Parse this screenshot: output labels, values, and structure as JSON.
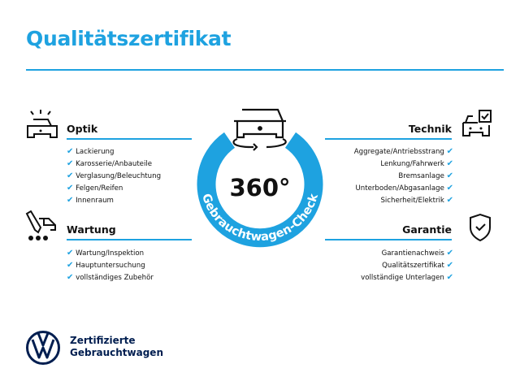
{
  "title": "Qualitätszertifikat",
  "colors": {
    "accent": "#1ea2e0",
    "brand": "#001e50"
  },
  "badge": {
    "value": "360°",
    "ring_text": "Gebrauchtwagen-Check",
    "icon": "car-rotate-icon"
  },
  "sections": {
    "optik": {
      "heading": "Optik",
      "icon": "car-lights-icon",
      "items": [
        "Lackierung",
        "Karosserie/Anbauteile",
        "Verglasung/Beleuchtung",
        "Felgen/Reifen",
        "Innenraum"
      ]
    },
    "wartung": {
      "heading": "Wartung",
      "icon": "service-tools-icon",
      "items": [
        "Wartung/Inspektion",
        "Hauptuntersuchung",
        "vollständiges Zubehör"
      ]
    },
    "technik": {
      "heading": "Technik",
      "icon": "car-checkbox-icon",
      "items": [
        "Aggregate/Antriebsstrang",
        "Lenkung/Fahrwerk",
        "Bremsanlage",
        "Unterboden/Abgasanlage",
        "Sicherheit/Elektrik"
      ]
    },
    "garantie": {
      "heading": "Garantie",
      "icon": "shield-check-icon",
      "items": [
        "Garantienachweis",
        "Qualitätszertifikat",
        "vollständige Unterlagen"
      ]
    }
  },
  "footer": {
    "line1": "Zertifizierte",
    "line2": "Gebrauchtwagen"
  }
}
